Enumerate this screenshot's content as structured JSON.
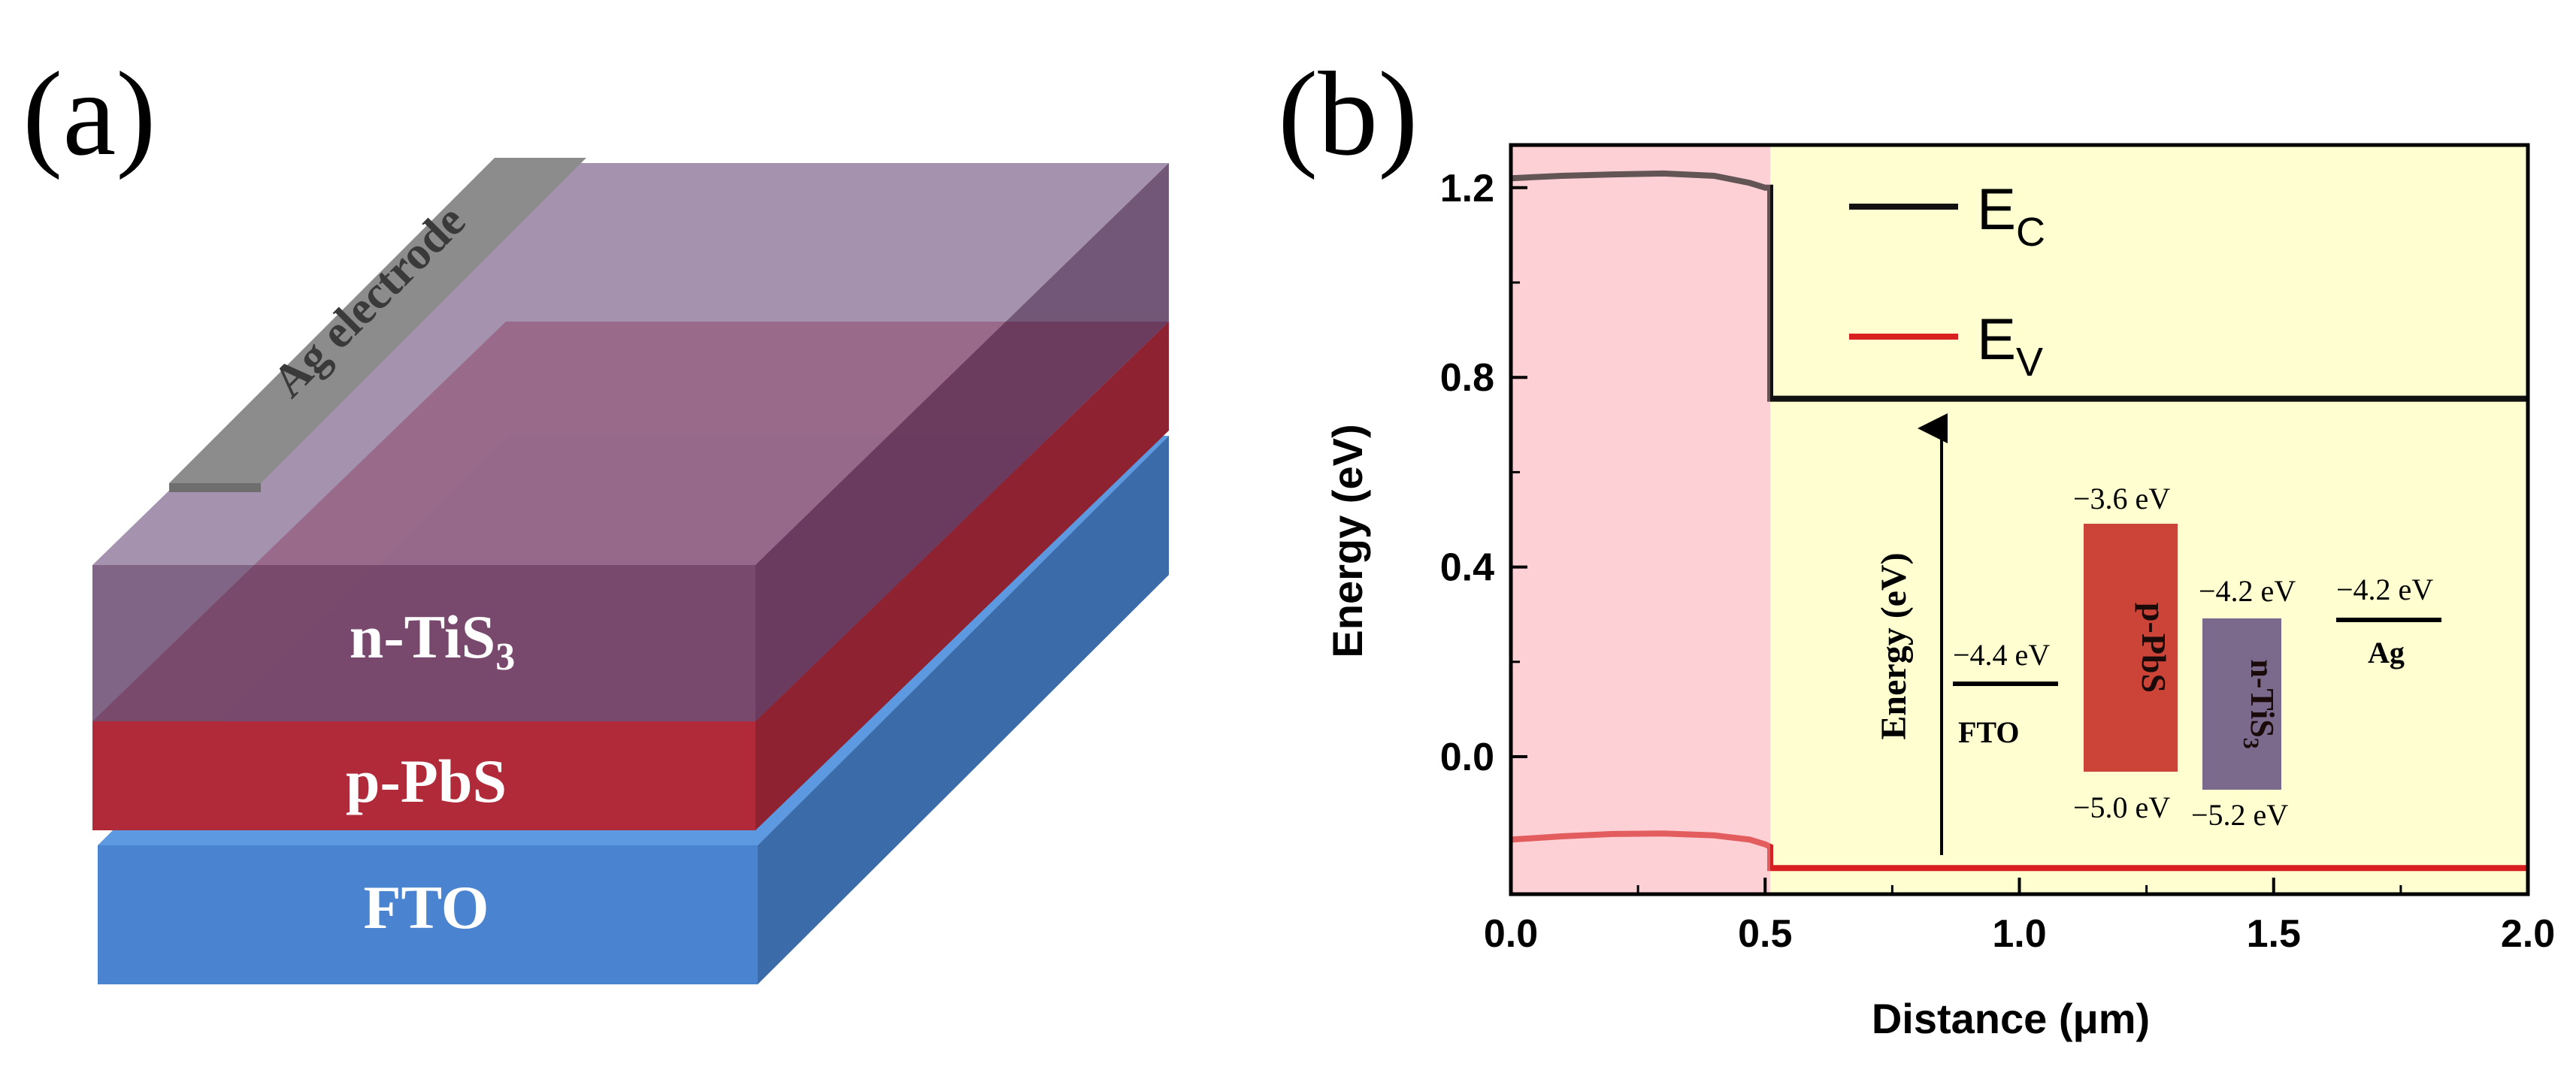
{
  "panel_a": {
    "label": "(a)",
    "layers": {
      "electrode": "Ag electrode",
      "top_prefix": "n-TiS",
      "top_sub": "3",
      "middle": "p-PbS",
      "bottom": "FTO"
    },
    "colors": {
      "fto": "#4a84d0",
      "pbs": "#b02a3a",
      "tis3": "#7a5c82",
      "electrode": "#8c8c8c"
    }
  },
  "panel_b": {
    "label": "(b)",
    "legend": {
      "ec_main": "E",
      "ec_sub": "C",
      "ev_main": "E",
      "ev_sub": "V"
    },
    "inset": {
      "axis_label": "Energy (eV)",
      "fto": {
        "top_label": "−4.4 eV",
        "name": "FTO"
      },
      "pbs": {
        "top_label": "−3.6 eV",
        "bottom_label": "−5.0 eV",
        "name": "p-PbS"
      },
      "tis3": {
        "top_label": "−4.2 eV",
        "bottom_label": "−5.2 eV",
        "name_prefix": "n-TiS",
        "name_sub": "3"
      },
      "ag": {
        "top_label": "−4.2 eV",
        "name": "Ag"
      }
    },
    "colors": {
      "left_region": "#fcd0d4",
      "right_region": "#fefed0",
      "ec_line": "#000000",
      "ev_line": "#d82020",
      "pbs_box": "#cc4438",
      "tis3_box": "#7b6a8c"
    }
  },
  "chart_data": {
    "type": "line",
    "title": "",
    "xlabel": "Distance (μm)",
    "ylabel": "Energy (eV)",
    "xlim": [
      0.0,
      2.0
    ],
    "ylim": [
      -0.29,
      1.29
    ],
    "x_ticks": [
      0.0,
      0.5,
      1.0,
      1.5,
      2.0
    ],
    "x_tick_labels": [
      "0.0",
      "0.5",
      "1.0",
      "1.5",
      "2.0"
    ],
    "y_ticks": [
      0.0,
      0.4,
      0.8,
      1.2
    ],
    "y_tick_labels": [
      "0.0",
      "0.4",
      "0.8",
      "1.2"
    ],
    "shaded_regions": [
      {
        "x_from": 0.0,
        "x_to": 0.51,
        "name": "left-region"
      },
      {
        "x_from": 0.51,
        "x_to": 2.0,
        "name": "right-region"
      }
    ],
    "series": [
      {
        "name": "EC",
        "x": [
          0.0,
          0.1,
          0.2,
          0.3,
          0.4,
          0.47,
          0.5,
          0.51,
          0.51,
          0.6,
          1.0,
          1.5,
          2.0
        ],
        "y": [
          1.22,
          1.225,
          1.228,
          1.23,
          1.225,
          1.21,
          1.2,
          1.2,
          0.755,
          0.755,
          0.755,
          0.755,
          0.755
        ]
      },
      {
        "name": "EV",
        "x": [
          0.0,
          0.1,
          0.2,
          0.3,
          0.4,
          0.47,
          0.5,
          0.51,
          0.51,
          0.6,
          1.0,
          1.5,
          2.0
        ],
        "y": [
          -0.175,
          -0.168,
          -0.163,
          -0.162,
          -0.166,
          -0.175,
          -0.185,
          -0.19,
          -0.235,
          -0.235,
          -0.235,
          -0.235,
          -0.235
        ]
      }
    ]
  }
}
